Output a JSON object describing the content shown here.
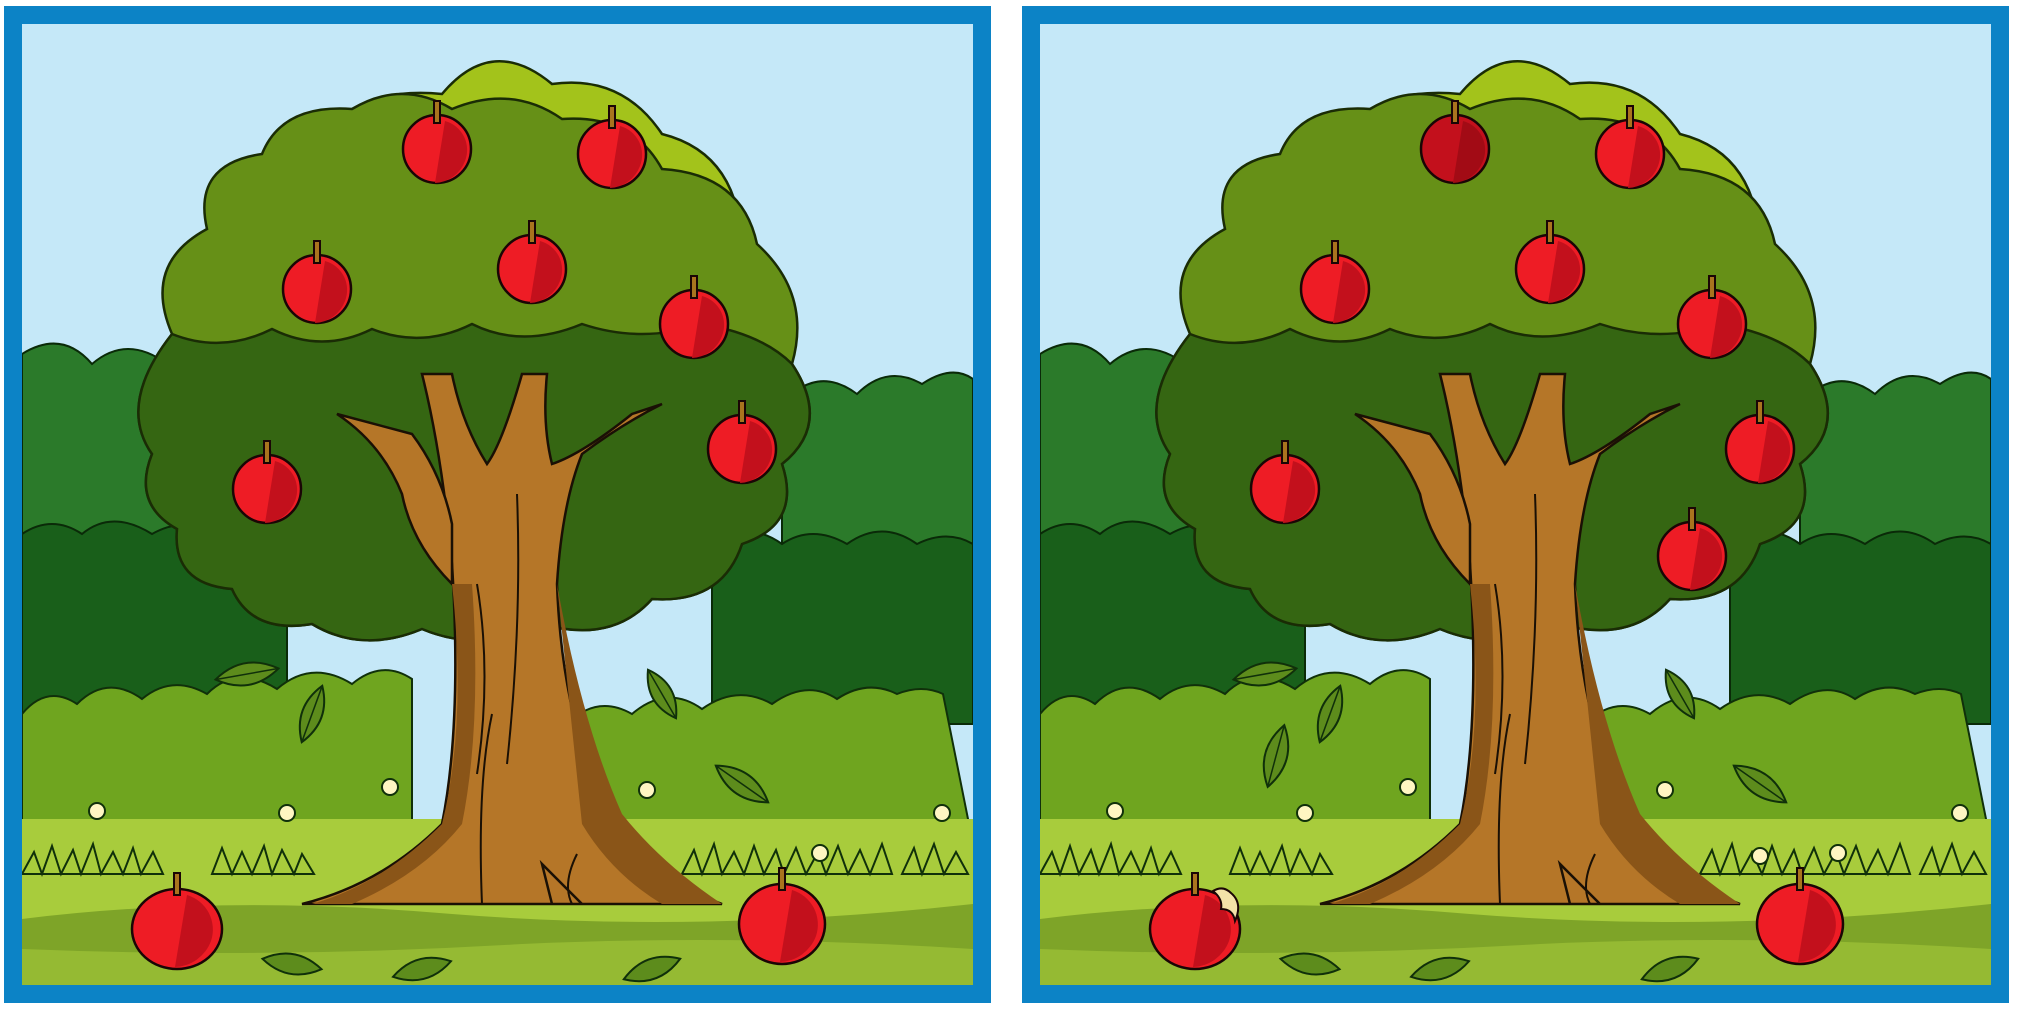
{
  "puzzle": {
    "type": "spot-the-difference",
    "panels": [
      "original",
      "modified"
    ]
  },
  "colors": {
    "frame": "#0c83c6",
    "sky": "#c5e8f8",
    "bush_back": "#2b7a2a",
    "bush_mid": "#195f1a",
    "bush_front": "#6fa51f",
    "grass": "#a8cc3c",
    "canopy_light": "#a3c31b",
    "canopy_mid": "#669017",
    "canopy_dark": "#356612",
    "trunk": "#b57628",
    "trunk_shadow": "#8a5518",
    "apple": "#ee1c25",
    "apple_dark": "#c3101c",
    "leaf": "#5d8c1c",
    "flower": "#fff6c2"
  },
  "icons": {
    "tree": "apple-tree-icon",
    "apple": "apple-icon",
    "bitten_apple": "bitten-apple-icon",
    "leaf": "leaf-icon",
    "flower": "flower-dot-icon"
  }
}
